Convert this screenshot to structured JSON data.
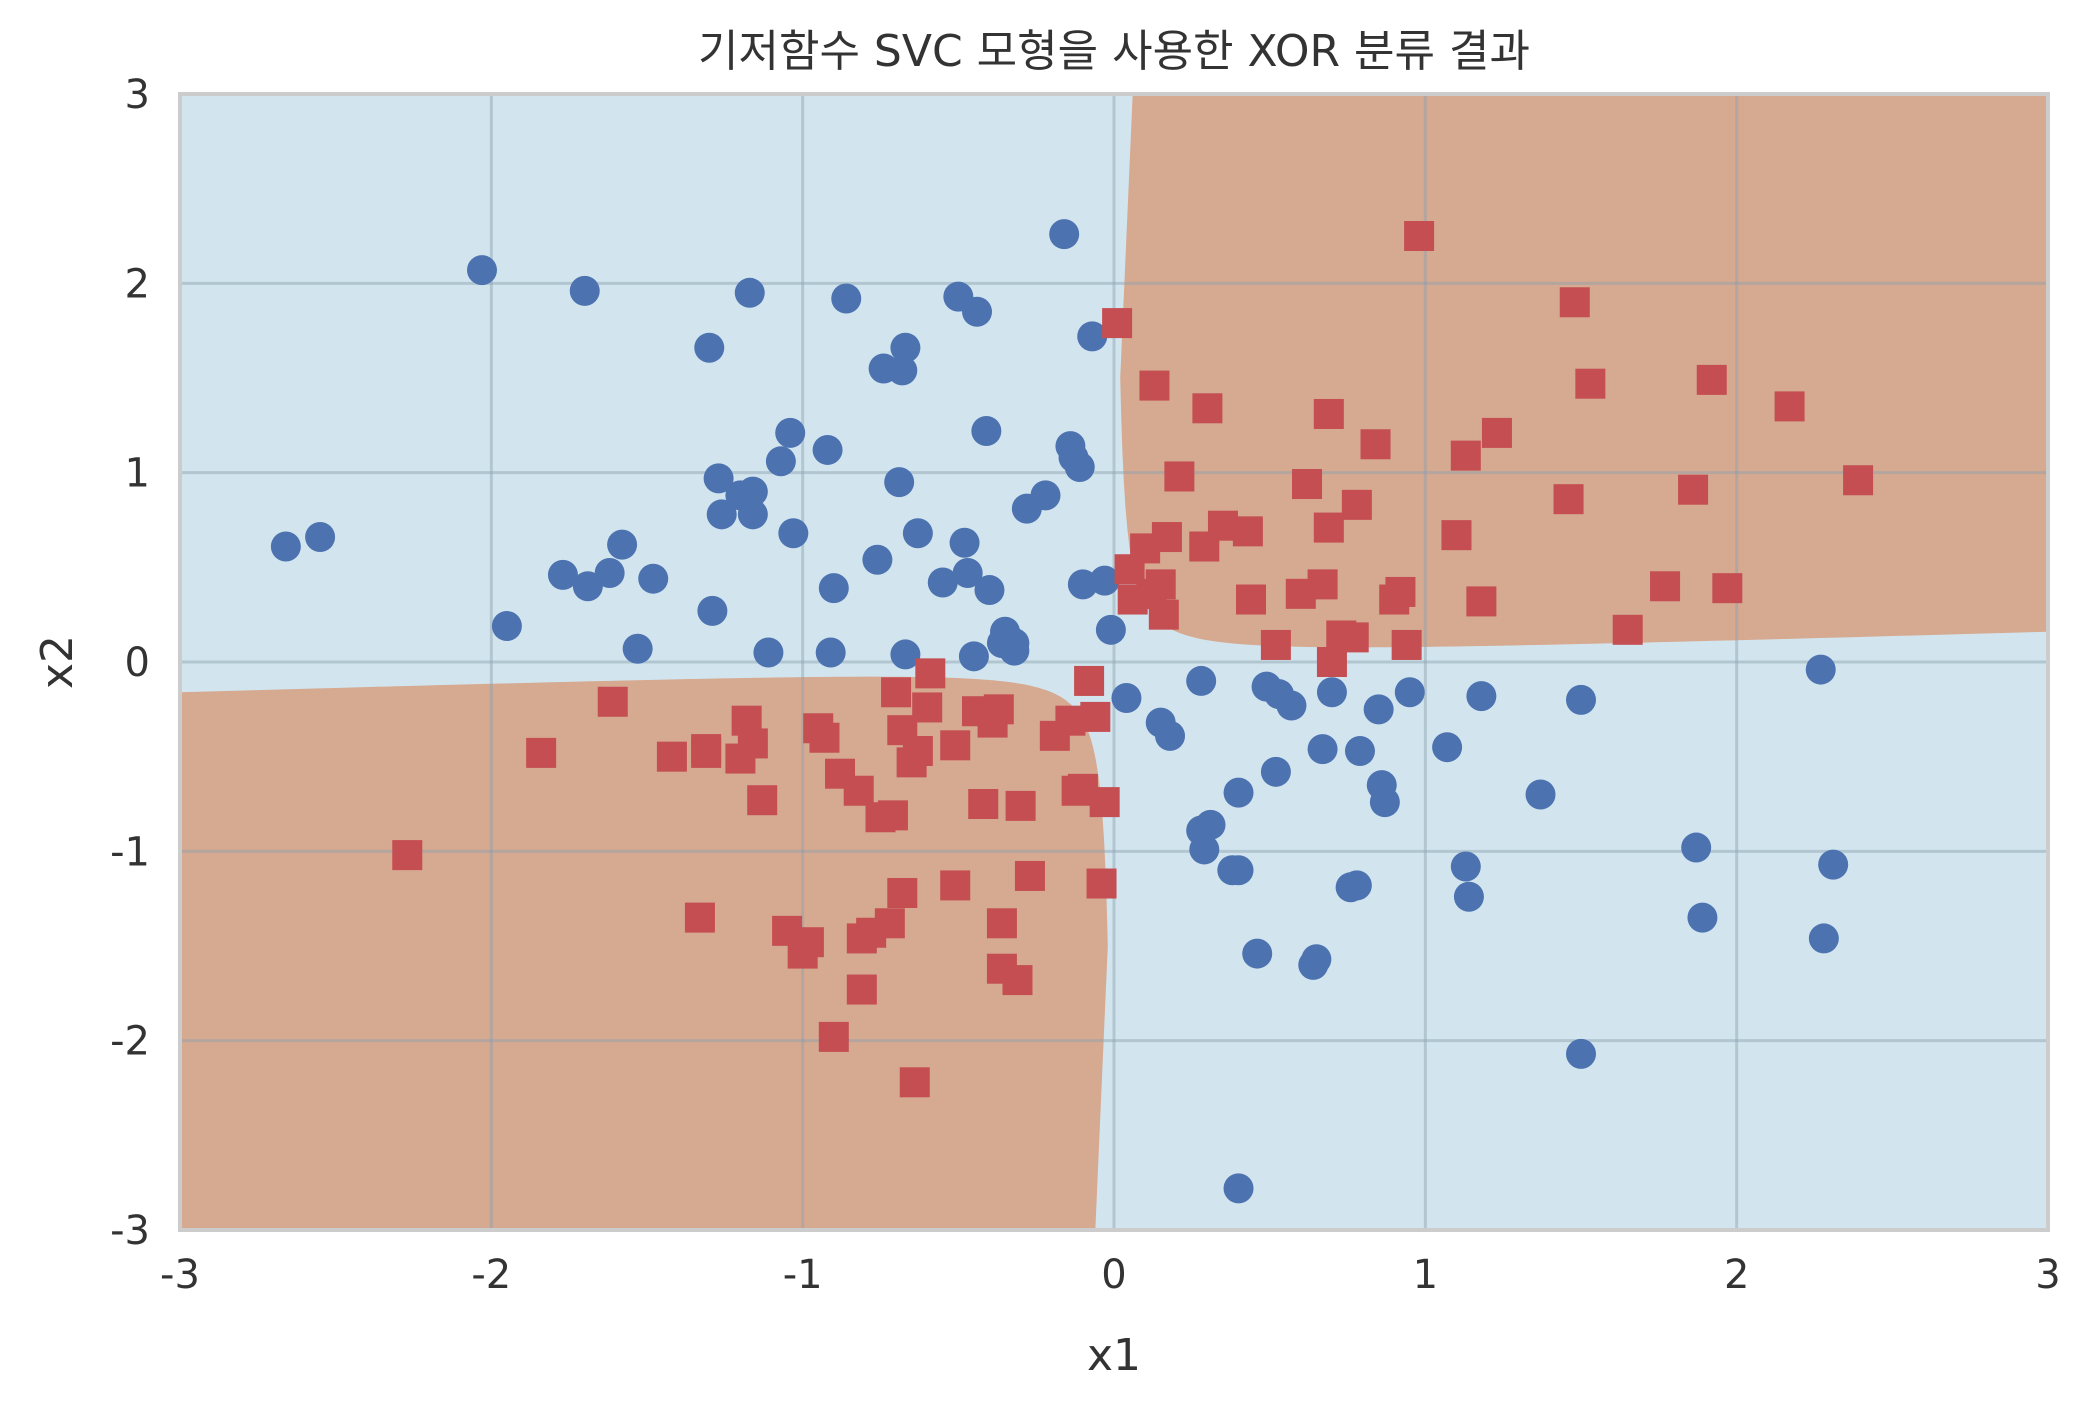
{
  "chart_data": {
    "type": "scatter",
    "title": "기저함수 SVC 모형을 사용한 XOR 분류 결과",
    "xlabel": "x1",
    "ylabel": "x2",
    "xlim": [
      -3,
      3
    ],
    "ylim": [
      -3,
      3
    ],
    "xticks": [
      -3,
      -2,
      -1,
      0,
      1,
      2,
      3
    ],
    "yticks": [
      -3,
      -2,
      -1,
      0,
      1,
      2,
      3
    ],
    "grid": true,
    "background_regions": {
      "class_0_color": "#d2e5ef",
      "class_1_color": "#d6a991",
      "boundary": "hyperbola x1*x2 = 0 (class 1 where x1*x2 > 0)"
    },
    "series": [
      {
        "marker": "circle",
        "color": "#4c72b0",
        "points": [
          [
            -2.66,
            0.61
          ],
          [
            -2.55,
            0.66
          ],
          [
            -2.03,
            2.07
          ],
          [
            -1.95,
            0.19
          ],
          [
            -1.77,
            0.46
          ],
          [
            -1.7,
            1.96
          ],
          [
            -1.69,
            0.4
          ],
          [
            -1.62,
            0.47
          ],
          [
            -1.58,
            0.62
          ],
          [
            -1.53,
            0.07
          ],
          [
            -1.48,
            0.44
          ],
          [
            -1.3,
            1.66
          ],
          [
            -1.29,
            0.27
          ],
          [
            -1.27,
            0.97
          ],
          [
            -1.26,
            0.78
          ],
          [
            -1.2,
            0.88
          ],
          [
            -1.17,
            1.95
          ],
          [
            -1.16,
            0.9
          ],
          [
            -1.16,
            0.78
          ],
          [
            -1.11,
            0.05
          ],
          [
            -1.07,
            1.06
          ],
          [
            -1.04,
            1.21
          ],
          [
            -1.03,
            0.68
          ],
          [
            -0.92,
            1.12
          ],
          [
            -0.91,
            0.05
          ],
          [
            -0.9,
            0.39
          ],
          [
            -0.86,
            1.92
          ],
          [
            -0.76,
            0.54
          ],
          [
            -0.74,
            1.55
          ],
          [
            -0.69,
            0.95
          ],
          [
            -0.68,
            1.54
          ],
          [
            -0.67,
            1.66
          ],
          [
            -0.67,
            0.04
          ],
          [
            -0.63,
            0.68
          ],
          [
            -0.55,
            0.42
          ],
          [
            -0.5,
            1.93
          ],
          [
            -0.48,
            0.63
          ],
          [
            -0.47,
            0.47
          ],
          [
            -0.45,
            0.03
          ],
          [
            -0.44,
            1.85
          ],
          [
            -0.41,
            1.22
          ],
          [
            -0.4,
            0.38
          ],
          [
            -0.36,
            0.1
          ],
          [
            -0.35,
            0.16
          ],
          [
            -0.32,
            0.1
          ],
          [
            -0.32,
            0.06
          ],
          [
            -0.28,
            0.81
          ],
          [
            -0.22,
            0.88
          ],
          [
            -0.16,
            2.26
          ],
          [
            -0.14,
            1.14
          ],
          [
            -0.13,
            1.08
          ],
          [
            -0.11,
            1.03
          ],
          [
            -0.1,
            0.41
          ],
          [
            -0.07,
            1.72
          ],
          [
            -0.03,
            0.43
          ],
          [
            -0.01,
            0.17
          ],
          [
            0.04,
            -0.19
          ],
          [
            0.15,
            -0.32
          ],
          [
            0.18,
            -0.39
          ],
          [
            0.28,
            -0.1
          ],
          [
            0.28,
            -0.89
          ],
          [
            0.29,
            -0.99
          ],
          [
            0.31,
            -0.86
          ],
          [
            0.38,
            -1.1
          ],
          [
            0.4,
            -1.1
          ],
          [
            0.4,
            -2.78
          ],
          [
            0.4,
            -0.69
          ],
          [
            0.46,
            -1.54
          ],
          [
            0.49,
            -0.13
          ],
          [
            0.52,
            -0.58
          ],
          [
            0.53,
            -0.17
          ],
          [
            0.57,
            -0.23
          ],
          [
            0.64,
            -1.6
          ],
          [
            0.65,
            -1.57
          ],
          [
            0.67,
            -0.46
          ],
          [
            0.7,
            -0.16
          ],
          [
            0.76,
            -1.19
          ],
          [
            0.78,
            -1.18
          ],
          [
            0.79,
            -0.47
          ],
          [
            0.85,
            -0.25
          ],
          [
            0.86,
            -0.65
          ],
          [
            0.87,
            -0.74
          ],
          [
            0.95,
            -0.16
          ],
          [
            1.07,
            -0.45
          ],
          [
            1.13,
            -1.08
          ],
          [
            1.14,
            -1.24
          ],
          [
            1.18,
            -0.18
          ],
          [
            1.37,
            -0.7
          ],
          [
            1.5,
            -0.2
          ],
          [
            1.5,
            -2.07
          ],
          [
            1.87,
            -0.98
          ],
          [
            1.89,
            -1.35
          ],
          [
            2.27,
            -0.04
          ],
          [
            2.28,
            -1.46
          ],
          [
            2.31,
            -1.07
          ]
        ]
      },
      {
        "marker": "square",
        "color": "#c44e52",
        "points": [
          [
            -2.27,
            -1.02
          ],
          [
            -1.84,
            -0.48
          ],
          [
            -1.61,
            -0.21
          ],
          [
            -1.42,
            -0.5
          ],
          [
            -1.31,
            -0.46
          ],
          [
            -1.33,
            -1.35
          ],
          [
            -1.31,
            -0.48
          ],
          [
            -1.2,
            -0.51
          ],
          [
            -1.18,
            -0.31
          ],
          [
            -1.16,
            -0.43
          ],
          [
            -1.13,
            -0.73
          ],
          [
            -1.05,
            -1.42
          ],
          [
            -1.0,
            -1.54
          ],
          [
            -0.98,
            -1.48
          ],
          [
            -0.95,
            -0.35
          ],
          [
            -0.93,
            -0.4
          ],
          [
            -0.9,
            -1.98
          ],
          [
            -0.88,
            -0.59
          ],
          [
            -0.82,
            -0.68
          ],
          [
            -0.81,
            -1.46
          ],
          [
            -0.81,
            -1.73
          ],
          [
            -0.78,
            -1.43
          ],
          [
            -0.75,
            -0.82
          ],
          [
            -0.72,
            -1.38
          ],
          [
            -0.71,
            -0.81
          ],
          [
            -0.7,
            -0.16
          ],
          [
            -0.68,
            -1.22
          ],
          [
            -0.68,
            -0.36
          ],
          [
            -0.65,
            -0.53
          ],
          [
            -0.64,
            -2.22
          ],
          [
            -0.63,
            -0.47
          ],
          [
            -0.6,
            -0.24
          ],
          [
            -0.59,
            -0.06
          ],
          [
            -0.51,
            -1.18
          ],
          [
            -0.51,
            -0.44
          ],
          [
            -0.44,
            -0.26
          ],
          [
            -0.42,
            -0.75
          ],
          [
            -0.39,
            -0.32
          ],
          [
            -0.37,
            -0.25
          ],
          [
            -0.36,
            -1.62
          ],
          [
            -0.36,
            -1.38
          ],
          [
            -0.31,
            -1.68
          ],
          [
            -0.3,
            -0.76
          ],
          [
            -0.27,
            -1.13
          ],
          [
            -0.19,
            -0.39
          ],
          [
            -0.14,
            -0.31
          ],
          [
            -0.12,
            -0.68
          ],
          [
            -0.1,
            -0.67
          ],
          [
            -0.08,
            -0.1
          ],
          [
            -0.06,
            -0.29
          ],
          [
            -0.04,
            -1.17
          ],
          [
            -0.03,
            -0.74
          ],
          [
            0.01,
            1.79
          ],
          [
            0.05,
            0.49
          ],
          [
            0.06,
            0.33
          ],
          [
            0.1,
            0.6
          ],
          [
            0.12,
            0.36
          ],
          [
            0.13,
            1.46
          ],
          [
            0.15,
            0.41
          ],
          [
            0.16,
            0.25
          ],
          [
            0.17,
            0.66
          ],
          [
            0.21,
            0.98
          ],
          [
            0.29,
            0.61
          ],
          [
            0.3,
            1.34
          ],
          [
            0.35,
            0.72
          ],
          [
            0.43,
            0.69
          ],
          [
            0.44,
            0.33
          ],
          [
            0.52,
            0.09
          ],
          [
            0.6,
            0.36
          ],
          [
            0.62,
            0.94
          ],
          [
            0.67,
            0.41
          ],
          [
            0.69,
            1.31
          ],
          [
            0.69,
            0.71
          ],
          [
            0.7,
            0.0
          ],
          [
            0.73,
            0.14
          ],
          [
            0.77,
            0.13
          ],
          [
            0.78,
            0.83
          ],
          [
            0.84,
            1.15
          ],
          [
            0.9,
            0.33
          ],
          [
            0.92,
            0.37
          ],
          [
            0.94,
            0.09
          ],
          [
            0.98,
            2.25
          ],
          [
            1.1,
            0.67
          ],
          [
            1.13,
            1.09
          ],
          [
            1.18,
            0.32
          ],
          [
            1.23,
            1.21
          ],
          [
            1.46,
            0.86
          ],
          [
            1.48,
            1.9
          ],
          [
            1.53,
            1.47
          ],
          [
            1.65,
            0.17
          ],
          [
            1.77,
            0.4
          ],
          [
            1.86,
            0.91
          ],
          [
            1.92,
            1.49
          ],
          [
            1.97,
            0.39
          ],
          [
            2.17,
            1.35
          ],
          [
            2.39,
            0.96
          ]
        ]
      }
    ]
  }
}
